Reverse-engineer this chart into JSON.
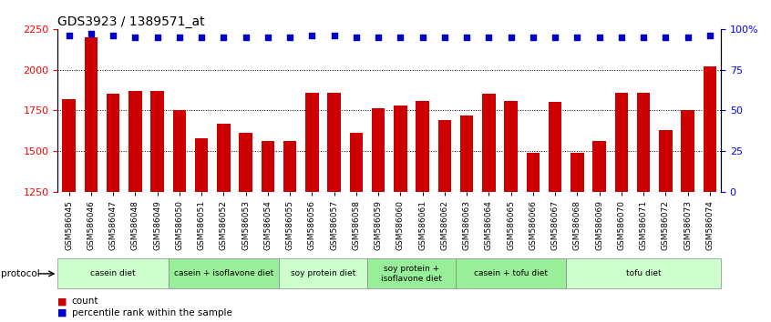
{
  "title": "GDS3923 / 1389571_at",
  "samples": [
    "GSM586045",
    "GSM586046",
    "GSM586047",
    "GSM586048",
    "GSM586049",
    "GSM586050",
    "GSM586051",
    "GSM586052",
    "GSM586053",
    "GSM586054",
    "GSM586055",
    "GSM586056",
    "GSM586057",
    "GSM586058",
    "GSM586059",
    "GSM586060",
    "GSM586061",
    "GSM586062",
    "GSM586063",
    "GSM586064",
    "GSM586065",
    "GSM586066",
    "GSM586067",
    "GSM586068",
    "GSM586069",
    "GSM586070",
    "GSM586071",
    "GSM586072",
    "GSM586073",
    "GSM586074"
  ],
  "counts": [
    1820,
    2200,
    1850,
    1870,
    1870,
    1750,
    1580,
    1670,
    1610,
    1560,
    1560,
    1860,
    1860,
    1610,
    1760,
    1780,
    1810,
    1690,
    1720,
    1850,
    1810,
    1490,
    1800,
    1490,
    1560,
    1860,
    1860,
    1630,
    1750,
    2020
  ],
  "percentile_ranks": [
    96,
    97,
    96,
    95,
    95,
    95,
    95,
    95,
    95,
    95,
    95,
    96,
    96,
    95,
    95,
    95,
    95,
    95,
    95,
    95,
    95,
    95,
    95,
    95,
    95,
    95,
    95,
    95,
    95,
    96
  ],
  "ylim_left": [
    1250,
    2250
  ],
  "ylim_right": [
    0,
    100
  ],
  "yticks_left": [
    1250,
    1500,
    1750,
    2000,
    2250
  ],
  "yticks_right": [
    0,
    25,
    50,
    75,
    100
  ],
  "ytick_labels_right": [
    "0",
    "25",
    "50",
    "75",
    "100%"
  ],
  "bar_color": "#CC0000",
  "dot_color": "#0000CC",
  "groups": [
    {
      "label": "casein diet",
      "start": 0,
      "end": 4,
      "color": "#ccffcc"
    },
    {
      "label": "casein + isoflavone diet",
      "start": 5,
      "end": 9,
      "color": "#99ee99"
    },
    {
      "label": "soy protein diet",
      "start": 10,
      "end": 13,
      "color": "#ccffcc"
    },
    {
      "label": "soy protein +\nisoflavone diet",
      "start": 14,
      "end": 17,
      "color": "#99ee99"
    },
    {
      "label": "casein + tofu diet",
      "start": 18,
      "end": 22,
      "color": "#99ee99"
    },
    {
      "label": "tofu diet",
      "start": 23,
      "end": 29,
      "color": "#ccffcc"
    }
  ],
  "protocol_label": "protocol",
  "legend_count_label": "count",
  "legend_percentile_label": "percentile rank within the sample",
  "title_fontsize": 10,
  "tick_fontsize": 6.5,
  "label_fontsize": 7.5
}
